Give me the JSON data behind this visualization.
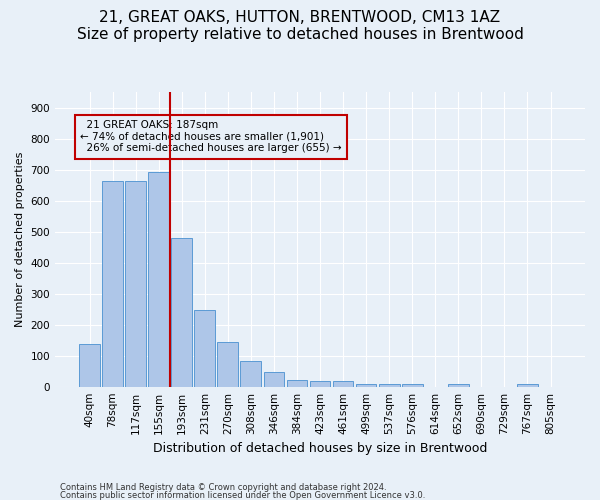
{
  "title1": "21, GREAT OAKS, HUTTON, BRENTWOOD, CM13 1AZ",
  "title2": "Size of property relative to detached houses in Brentwood",
  "xlabel": "Distribution of detached houses by size in Brentwood",
  "ylabel": "Number of detached properties",
  "footer1": "Contains HM Land Registry data © Crown copyright and database right 2024.",
  "footer2": "Contains public sector information licensed under the Open Government Licence v3.0.",
  "bar_labels": [
    "40sqm",
    "78sqm",
    "117sqm",
    "155sqm",
    "193sqm",
    "231sqm",
    "270sqm",
    "308sqm",
    "346sqm",
    "384sqm",
    "423sqm",
    "461sqm",
    "499sqm",
    "537sqm",
    "576sqm",
    "614sqm",
    "652sqm",
    "690sqm",
    "729sqm",
    "767sqm",
    "805sqm"
  ],
  "bar_values": [
    137,
    665,
    665,
    693,
    480,
    247,
    145,
    84,
    47,
    22,
    17,
    17,
    10,
    8,
    8,
    0,
    8,
    0,
    0,
    8,
    0
  ],
  "bar_color": "#aec6e8",
  "bar_edge_color": "#5b9bd5",
  "highlight_color": "#c00000",
  "red_line_x": 3.5,
  "ylim": [
    0,
    950
  ],
  "yticks": [
    0,
    100,
    200,
    300,
    400,
    500,
    600,
    700,
    800,
    900
  ],
  "annotation_text": "  21 GREAT OAKS: 187sqm\n← 74% of detached houses are smaller (1,901)\n  26% of semi-detached houses are larger (655) →",
  "annotation_box_color": "#c00000",
  "background_color": "#e8f0f8",
  "grid_color": "#ffffff",
  "title1_fontsize": 11,
  "title2_fontsize": 9.5,
  "xlabel_fontsize": 9,
  "ylabel_fontsize": 8,
  "annotation_fontsize": 7.5,
  "tick_fontsize": 7.5,
  "footer_fontsize": 6
}
